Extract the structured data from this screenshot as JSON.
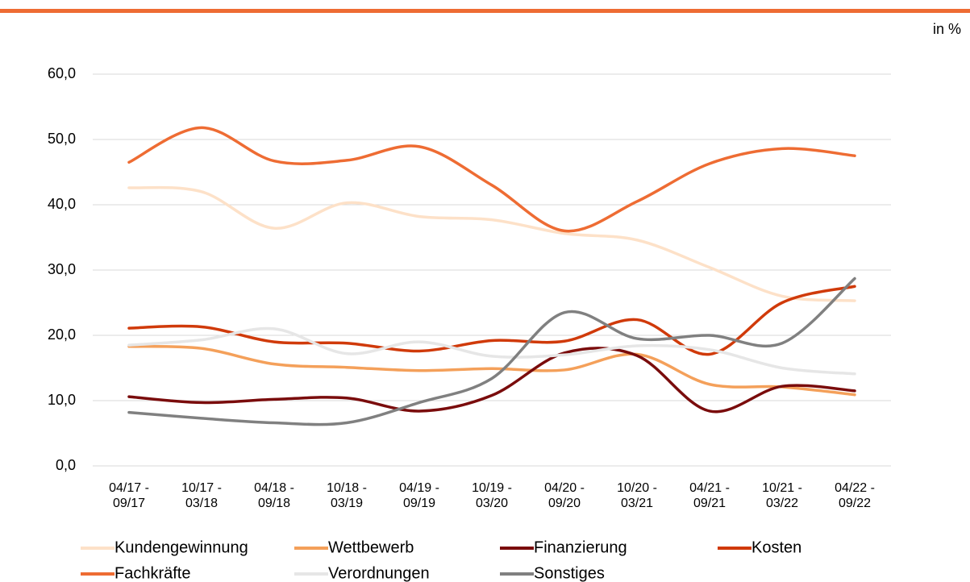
{
  "chart_data": {
    "type": "line",
    "unit_label": "in %",
    "categories": [
      "04/17 - 09/17",
      "10/17 - 03/18",
      "04/18 - 09/18",
      "10/18 - 03/19",
      "04/19 - 09/19",
      "10/19 - 03/20",
      "04/20 - 09/20",
      "10/20 - 03/21",
      "04/21 - 09/21",
      "10/21 - 03/22",
      "04/22 - 09/22"
    ],
    "series": [
      {
        "name": "Kundengewinnung",
        "color": "#fde1c8",
        "values": [
          42.6,
          42.0,
          36.4,
          40.3,
          38.2,
          37.7,
          35.6,
          34.6,
          30.4,
          26.0,
          25.3
        ]
      },
      {
        "name": "Wettbewerb",
        "color": "#f4a05a",
        "values": [
          18.3,
          18.0,
          15.6,
          15.1,
          14.6,
          14.9,
          14.7,
          17.1,
          12.5,
          12.1,
          10.9
        ]
      },
      {
        "name": "Finanzierung",
        "color": "#7a0c0c",
        "values": [
          10.6,
          9.7,
          10.2,
          10.4,
          8.4,
          10.8,
          17.3,
          16.9,
          8.4,
          12.2,
          11.5
        ]
      },
      {
        "name": "Kosten",
        "color": "#d03a0a",
        "values": [
          21.1,
          21.3,
          19.0,
          18.8,
          17.6,
          19.2,
          19.1,
          22.4,
          17.1,
          25.0,
          27.5
        ]
      },
      {
        "name": "Fachkräfte",
        "color": "#ee6c33",
        "values": [
          46.5,
          51.8,
          46.7,
          46.8,
          48.9,
          43.0,
          36.0,
          40.5,
          46.3,
          48.6,
          47.5
        ]
      },
      {
        "name": "Verordnungen",
        "color": "#e6e6e6",
        "values": [
          18.5,
          19.3,
          21.0,
          17.2,
          19.0,
          16.8,
          17.0,
          18.4,
          17.8,
          15.0,
          14.1
        ]
      },
      {
        "name": "Sonstiges",
        "color": "#808080",
        "values": [
          8.2,
          7.3,
          6.6,
          6.6,
          9.7,
          13.4,
          23.5,
          19.5,
          20.0,
          18.8,
          28.7
        ]
      }
    ],
    "ylim": [
      0,
      60
    ],
    "yticks": [
      {
        "value": 0,
        "label": "0,0"
      },
      {
        "value": 10,
        "label": "10,0"
      },
      {
        "value": 20,
        "label": "20,0"
      },
      {
        "value": 30,
        "label": "30,0"
      },
      {
        "value": 40,
        "label": "40,0"
      },
      {
        "value": 50,
        "label": "50,0"
      },
      {
        "value": 60,
        "label": "60,0"
      }
    ],
    "grid": true,
    "legend": "bottom",
    "accent_color": "#ee6c33"
  }
}
